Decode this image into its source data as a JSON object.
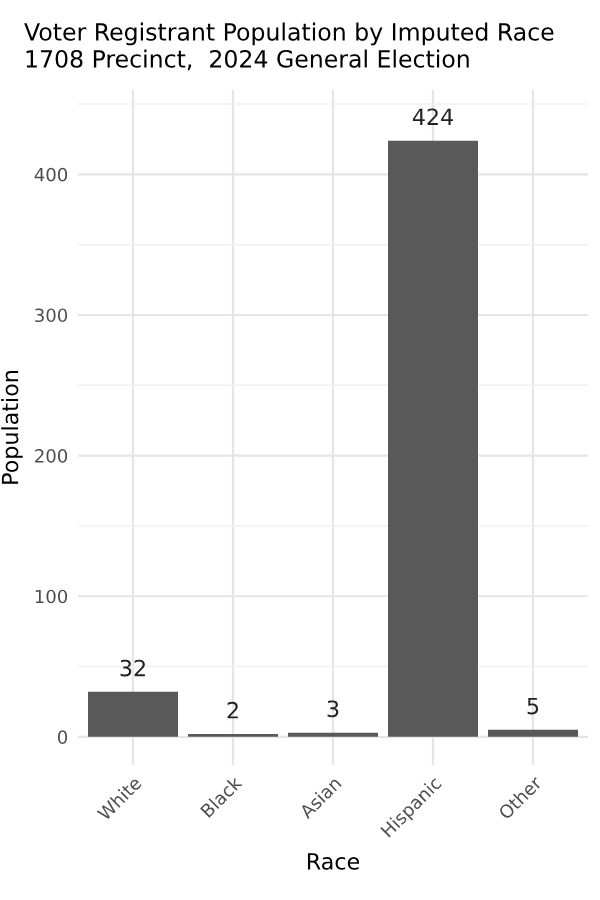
{
  "chart_data": {
    "type": "bar",
    "title": "Voter Registrant Population by Imputed Race",
    "subtitle": "1708 Precinct,  2024 General Election",
    "xlabel": "Race",
    "ylabel": "Population",
    "categories": [
      "White",
      "Black",
      "Asian",
      "Hispanic",
      "Other"
    ],
    "values": [
      32,
      2,
      3,
      424,
      5
    ],
    "color": "#595959",
    "data_labels": true,
    "ylim": [
      -20,
      460
    ],
    "yticks": [
      0,
      100,
      200,
      300,
      400
    ],
    "grid": true
  }
}
